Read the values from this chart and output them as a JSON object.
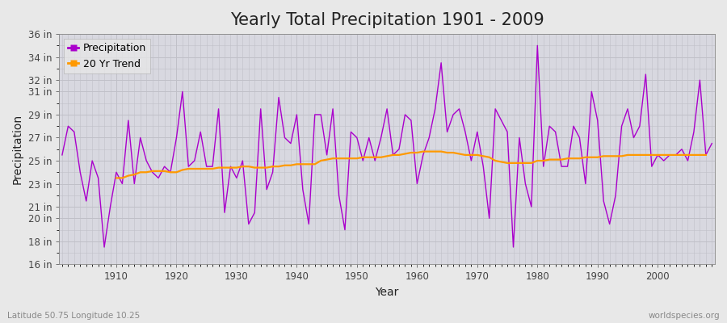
{
  "title": "Yearly Total Precipitation 1901 - 2009",
  "xlabel": "Year",
  "ylabel": "Precipitation",
  "subtitle": "Latitude 50.75 Longitude 10.25",
  "watermark": "worldspecies.org",
  "ylim": [
    16,
    36
  ],
  "ytick_positions": [
    16,
    18,
    20,
    21,
    23,
    25,
    27,
    29,
    31,
    32,
    34,
    36
  ],
  "years": [
    1901,
    1902,
    1903,
    1904,
    1905,
    1906,
    1907,
    1908,
    1909,
    1910,
    1911,
    1912,
    1913,
    1914,
    1915,
    1916,
    1917,
    1918,
    1919,
    1920,
    1921,
    1922,
    1923,
    1924,
    1925,
    1926,
    1927,
    1928,
    1929,
    1930,
    1931,
    1932,
    1933,
    1934,
    1935,
    1936,
    1937,
    1938,
    1939,
    1940,
    1941,
    1942,
    1943,
    1944,
    1945,
    1946,
    1947,
    1948,
    1949,
    1950,
    1951,
    1952,
    1953,
    1954,
    1955,
    1956,
    1957,
    1958,
    1959,
    1960,
    1961,
    1962,
    1963,
    1964,
    1965,
    1966,
    1967,
    1968,
    1969,
    1970,
    1971,
    1972,
    1973,
    1974,
    1975,
    1976,
    1977,
    1978,
    1979,
    1980,
    1981,
    1982,
    1983,
    1984,
    1985,
    1986,
    1987,
    1988,
    1989,
    1990,
    1991,
    1992,
    1993,
    1994,
    1995,
    1996,
    1997,
    1998,
    1999,
    2000,
    2001,
    2002,
    2003,
    2004,
    2005,
    2006,
    2007,
    2008,
    2009
  ],
  "precipitation": [
    25.5,
    28.0,
    27.5,
    24.0,
    21.5,
    25.0,
    23.5,
    17.5,
    21.0,
    24.0,
    23.0,
    28.5,
    23.0,
    27.0,
    25.0,
    24.0,
    23.5,
    24.5,
    24.0,
    27.0,
    31.0,
    24.5,
    25.0,
    27.5,
    24.5,
    24.5,
    29.5,
    20.5,
    24.5,
    23.5,
    25.0,
    19.5,
    20.5,
    29.5,
    22.5,
    24.0,
    30.5,
    27.0,
    26.5,
    29.0,
    22.5,
    19.5,
    29.0,
    29.0,
    25.5,
    29.5,
    22.0,
    19.0,
    27.5,
    27.0,
    25.0,
    27.0,
    25.0,
    27.0,
    29.5,
    25.5,
    26.0,
    29.0,
    28.5,
    23.0,
    25.5,
    27.0,
    29.5,
    33.5,
    27.5,
    29.0,
    29.5,
    27.5,
    25.0,
    27.5,
    24.5,
    20.0,
    29.5,
    28.5,
    27.5,
    17.5,
    27.0,
    23.0,
    21.0,
    35.0,
    24.5,
    28.0,
    27.5,
    24.5,
    24.5,
    28.0,
    27.0,
    23.0,
    31.0,
    28.5,
    21.5,
    19.5,
    22.0,
    28.0,
    29.5,
    27.0,
    28.0,
    32.5,
    24.5,
    25.5,
    25.0,
    25.5,
    25.5,
    26.0,
    25.0,
    27.5,
    32.0,
    25.5,
    26.5
  ],
  "trend": [
    null,
    null,
    null,
    null,
    null,
    null,
    null,
    null,
    null,
    23.5,
    23.5,
    23.7,
    23.8,
    24.0,
    24.0,
    24.1,
    24.1,
    24.1,
    24.0,
    24.0,
    24.2,
    24.3,
    24.3,
    24.3,
    24.3,
    24.3,
    24.4,
    24.4,
    24.4,
    24.4,
    24.5,
    24.5,
    24.4,
    24.4,
    24.4,
    24.5,
    24.5,
    24.6,
    24.6,
    24.7,
    24.7,
    24.7,
    24.7,
    25.0,
    25.1,
    25.2,
    25.2,
    25.2,
    25.2,
    25.2,
    25.3,
    25.3,
    25.3,
    25.3,
    25.4,
    25.5,
    25.5,
    25.6,
    25.7,
    25.7,
    25.8,
    25.8,
    25.8,
    25.8,
    25.7,
    25.7,
    25.6,
    25.5,
    25.5,
    25.5,
    25.4,
    25.3,
    25.0,
    24.9,
    24.8,
    24.8,
    24.8,
    24.8,
    24.8,
    25.0,
    25.0,
    25.1,
    25.1,
    25.1,
    25.2,
    25.2,
    25.2,
    25.3,
    25.3,
    25.3,
    25.4,
    25.4,
    25.4,
    25.4,
    25.5,
    25.5,
    25.5,
    25.5,
    25.5,
    25.5,
    25.5,
    25.5,
    25.5,
    25.5,
    25.5,
    25.5,
    25.5,
    25.5
  ],
  "precip_color": "#aa00cc",
  "trend_color": "#ff9900",
  "fig_bg_color": "#e8e8e8",
  "plot_bg_color": "#d8d8e0",
  "grid_color": "#c0c0c8",
  "title_fontsize": 15,
  "axis_fontsize": 10,
  "tick_fontsize": 8.5,
  "legend_fontsize": 9
}
